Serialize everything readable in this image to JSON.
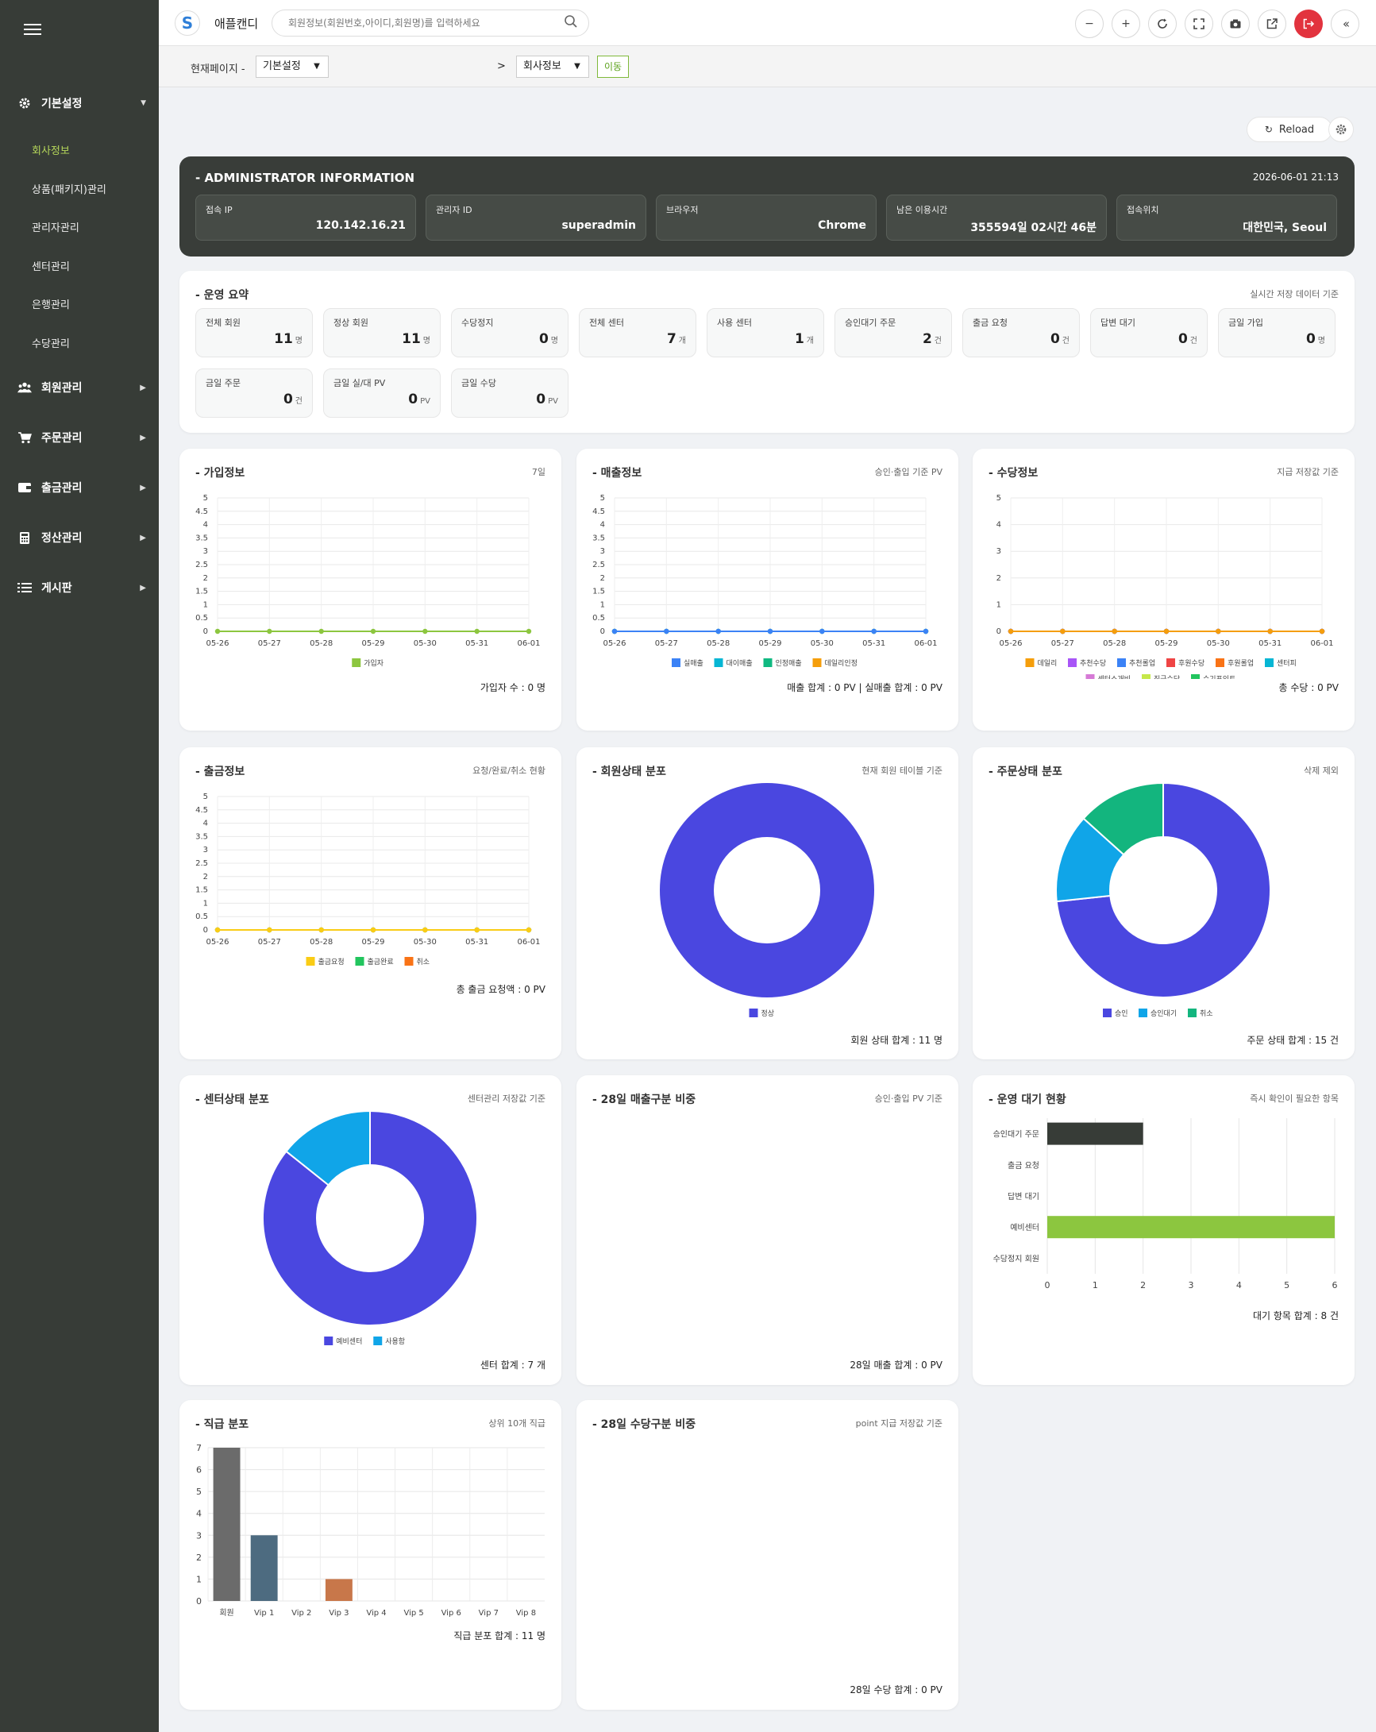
{
  "sidebar": {
    "sections": [
      {
        "label": "기본설정",
        "icon": "gear-icon",
        "expanded": true,
        "items": [
          "회사정보",
          "상품(패키지)관리",
          "관리자관리",
          "센터관리",
          "은행관리",
          "수당관리"
        ],
        "active": "회사정보"
      },
      {
        "label": "회원관리",
        "icon": "users-icon"
      },
      {
        "label": "주문관리",
        "icon": "cart-icon"
      },
      {
        "label": "출금관리",
        "icon": "wallet-icon"
      },
      {
        "label": "정산관리",
        "icon": "calculator-icon"
      },
      {
        "label": "게시판",
        "icon": "list-icon"
      }
    ]
  },
  "topbar": {
    "brand": "애플캔디",
    "search_placeholder": "회원정보(회원번호,아이디,회원명)를 입력하세요",
    "buttons": [
      "zoom-out",
      "zoom-in",
      "refresh",
      "fullscreen",
      "camera",
      "external-link",
      "logout",
      "collapse"
    ]
  },
  "breadcrumb": {
    "label": "현재페이지 -",
    "level1": "기본설정",
    "sep": ">",
    "level2": "회사정보",
    "go": "이동"
  },
  "toolbar": {
    "reload": "Reload"
  },
  "admin": {
    "title": "- ADMINISTRATOR INFORMATION",
    "datetime": "2026-06-01 21:13",
    "fields": [
      {
        "key": "접속 IP",
        "value": "120.142.16.21"
      },
      {
        "key": "관리자 ID",
        "value": "superadmin"
      },
      {
        "key": "브라우저",
        "value": "Chrome"
      },
      {
        "key": "남은 이용시간",
        "value": "355594일 02시간 46분"
      },
      {
        "key": "접속위치",
        "value": "대한민국, Seoul"
      }
    ]
  },
  "summary": {
    "title": "- 운영 요약",
    "subtitle": "실시간 저장 데이터 기준",
    "items": [
      {
        "key": "전체 회원",
        "value": "11",
        "unit": "명"
      },
      {
        "key": "정상 회원",
        "value": "11",
        "unit": "명"
      },
      {
        "key": "수당정지",
        "value": "0",
        "unit": "명"
      },
      {
        "key": "전체 센터",
        "value": "7",
        "unit": "개"
      },
      {
        "key": "사용 센터",
        "value": "1",
        "unit": "개"
      },
      {
        "key": "승인대기 주문",
        "value": "2",
        "unit": "건"
      },
      {
        "key": "출금 요청",
        "value": "0",
        "unit": "건"
      },
      {
        "key": "답변 대기",
        "value": "0",
        "unit": "건"
      },
      {
        "key": "금일 가입",
        "value": "0",
        "unit": "명"
      },
      {
        "key": "금일 주문",
        "value": "0",
        "unit": "건"
      },
      {
        "key": "금일 실/대 PV",
        "value": "0",
        "unit": "PV"
      },
      {
        "key": "금일 수당",
        "value": "0",
        "unit": "PV"
      }
    ]
  },
  "cards": {
    "join": {
      "title": "- 가입정보",
      "subtitle": "7일",
      "footer": "가입자 수 : 0 명"
    },
    "sales": {
      "title": "- 매출정보",
      "subtitle": "승인·출입 기준 PV",
      "footer": "매출 합계 : 0 PV | 실매출 합계 : 0 PV"
    },
    "bonus": {
      "title": "- 수당정보",
      "subtitle": "지급 저장값 기준",
      "footer": "총 수당 : 0 PV"
    },
    "withdraw": {
      "title": "- 출금정보",
      "subtitle": "요청/완료/취소 현황",
      "footer": "총 출금 요청액 : 0 PV"
    },
    "member_status": {
      "title": "- 회원상태 분포",
      "subtitle": "현재 회원 테이블 기준",
      "footer": "회원 상태 합계 : 11 명"
    },
    "order_status": {
      "title": "- 주문상태 분포",
      "subtitle": "삭제 제외",
      "footer": "주문 상태 합계 : 15 건"
    },
    "center_status": {
      "title": "- 센터상태 분포",
      "subtitle": "센터관리 저장값 기준",
      "footer": "센터 합계 : 7 개"
    },
    "sales_type": {
      "title": "- 28일 매출구분 비중",
      "subtitle": "승인·출입 PV 기준",
      "footer": "28일 매출 합계 : 0 PV"
    },
    "ops_wait": {
      "title": "- 운영 대기 현황",
      "subtitle": "즉시 확인이 필요한 항목",
      "footer": "대기 항목 합계 : 8 건"
    },
    "rank": {
      "title": "- 직급 분포",
      "subtitle": "상위 10개 직급",
      "footer": "직급 분포 합계 : 11 명"
    },
    "bonus_type": {
      "title": "- 28일 수당구분 비중",
      "subtitle": "point 지급 저장값 기준",
      "footer": "28일 수당 합계 : 0 PV"
    }
  },
  "chart_data": [
    {
      "id": "join",
      "type": "line",
      "x": [
        "05-26",
        "05-27",
        "05-28",
        "05-29",
        "05-30",
        "05-31",
        "06-01"
      ],
      "yticks": [
        "5",
        "4.5",
        "4",
        "3.5",
        "3",
        "2.5",
        "2",
        "1.5",
        "1",
        "0.5",
        "0"
      ],
      "ylim": [
        0,
        5
      ],
      "series": [
        {
          "name": "가입자",
          "values": [
            0,
            0,
            0,
            0,
            0,
            0,
            0
          ],
          "color": "#8cc63f"
        }
      ]
    },
    {
      "id": "sales",
      "type": "line",
      "x": [
        "05-26",
        "05-27",
        "05-28",
        "05-29",
        "05-30",
        "05-31",
        "06-01"
      ],
      "yticks": [
        "5",
        "4.5",
        "4",
        "3.5",
        "3",
        "2.5",
        "2",
        "1.5",
        "1",
        "0.5",
        "0"
      ],
      "ylim": [
        0,
        5
      ],
      "series": [
        {
          "name": "실매출",
          "values": [
            0,
            0,
            0,
            0,
            0,
            0,
            0
          ],
          "color": "#3b82f6"
        },
        {
          "name": "대이매출",
          "values": [
            0,
            0,
            0,
            0,
            0,
            0,
            0
          ],
          "color": "#06b6d4"
        },
        {
          "name": "인정매출",
          "values": [
            0,
            0,
            0,
            0,
            0,
            0,
            0
          ],
          "color": "#10b981"
        },
        {
          "name": "데일리인정",
          "values": [
            0,
            0,
            0,
            0,
            0,
            0,
            0
          ],
          "color": "#f59e0b"
        }
      ]
    },
    {
      "id": "bonus",
      "type": "line",
      "x": [
        "05-26",
        "05-27",
        "05-28",
        "05-29",
        "05-30",
        "05-31",
        "06-01"
      ],
      "yticks": [
        "5",
        "4",
        "3",
        "2",
        "1",
        "0"
      ],
      "ylim": [
        0,
        5
      ],
      "series": [
        {
          "name": "데일리",
          "values": [
            0,
            0,
            0,
            0,
            0,
            0,
            0
          ],
          "color": "#f59e0b"
        },
        {
          "name": "추천수당",
          "values": [
            0,
            0,
            0,
            0,
            0,
            0,
            0
          ],
          "color": "#a855f7"
        },
        {
          "name": "추천롤업",
          "values": [
            0,
            0,
            0,
            0,
            0,
            0,
            0
          ],
          "color": "#3b82f6"
        },
        {
          "name": "후원수당",
          "values": [
            0,
            0,
            0,
            0,
            0,
            0,
            0
          ],
          "color": "#ef4444"
        },
        {
          "name": "후원롤업",
          "values": [
            0,
            0,
            0,
            0,
            0,
            0,
            0
          ],
          "color": "#f97316"
        },
        {
          "name": "센터피",
          "values": [
            0,
            0,
            0,
            0,
            0,
            0,
            0
          ],
          "color": "#06b6d4"
        },
        {
          "name": "센터소개비",
          "values": [
            0,
            0,
            0,
            0,
            0,
            0,
            0
          ],
          "color": "#d67ad6"
        },
        {
          "name": "직급수당",
          "values": [
            0,
            0,
            0,
            0,
            0,
            0,
            0
          ],
          "color": "#c6e84a"
        },
        {
          "name": "수기포인트",
          "values": [
            0,
            0,
            0,
            0,
            0,
            0,
            0
          ],
          "color": "#22c55e"
        }
      ]
    },
    {
      "id": "withdraw",
      "type": "line",
      "x": [
        "05-26",
        "05-27",
        "05-28",
        "05-29",
        "05-30",
        "05-31",
        "06-01"
      ],
      "yticks": [
        "5",
        "4.5",
        "4",
        "3.5",
        "3",
        "2.5",
        "2",
        "1.5",
        "1",
        "0.5",
        "0"
      ],
      "ylim": [
        0,
        5
      ],
      "series": [
        {
          "name": "출금요청",
          "values": [
            0,
            0,
            0,
            0,
            0,
            0,
            0
          ],
          "color": "#facc15"
        },
        {
          "name": "출금완료",
          "values": [
            0,
            0,
            0,
            0,
            0,
            0,
            0
          ],
          "color": "#22c55e"
        },
        {
          "name": "취소",
          "values": [
            0,
            0,
            0,
            0,
            0,
            0,
            0
          ],
          "color": "#f97316"
        }
      ]
    },
    {
      "id": "member_status",
      "type": "pie",
      "slices": [
        {
          "name": "정상",
          "value": 11,
          "color": "#4a47e0"
        }
      ]
    },
    {
      "id": "order_status",
      "type": "pie",
      "slices": [
        {
          "name": "승인",
          "value": 11,
          "color": "#4a47e0"
        },
        {
          "name": "승인대기",
          "value": 2,
          "color": "#10a5e8"
        },
        {
          "name": "취소",
          "value": 2,
          "color": "#13b57e"
        }
      ]
    },
    {
      "id": "center_status",
      "type": "pie",
      "slices": [
        {
          "name": "예비센터",
          "value": 6,
          "color": "#4a47e0"
        },
        {
          "name": "사용함",
          "value": 1,
          "color": "#10a5e8"
        }
      ]
    },
    {
      "id": "ops_wait",
      "type": "bar",
      "orientation": "horizontal",
      "categories": [
        "승인대기 주문",
        "출금 요청",
        "답변 대기",
        "예비센터",
        "수당정지 회원"
      ],
      "values": [
        2,
        0,
        0,
        6,
        0
      ],
      "colors": [
        "#373c37",
        "#373c37",
        "#373c37",
        "#8cc63f",
        "#373c37"
      ],
      "xticks": [
        "0",
        "1",
        "2",
        "3",
        "4",
        "5",
        "6"
      ],
      "xlim": [
        0,
        6
      ]
    },
    {
      "id": "rank",
      "type": "bar",
      "categories": [
        "회원",
        "Vip 1",
        "Vip 2",
        "Vip 3",
        "Vip 4",
        "Vip 5",
        "Vip 6",
        "Vip 7",
        "Vip 8"
      ],
      "values": [
        7,
        3,
        0,
        1,
        0,
        0,
        0,
        0,
        0
      ],
      "colors": [
        "#6b6b6b",
        "#4d6b80",
        "#999999",
        "#c8774a",
        "#999999",
        "#999999",
        "#999999",
        "#999999",
        "#999999"
      ],
      "yticks": [
        "7",
        "6",
        "5",
        "4",
        "3",
        "2",
        "1",
        "0"
      ],
      "ylim": [
        0,
        7
      ]
    }
  ]
}
